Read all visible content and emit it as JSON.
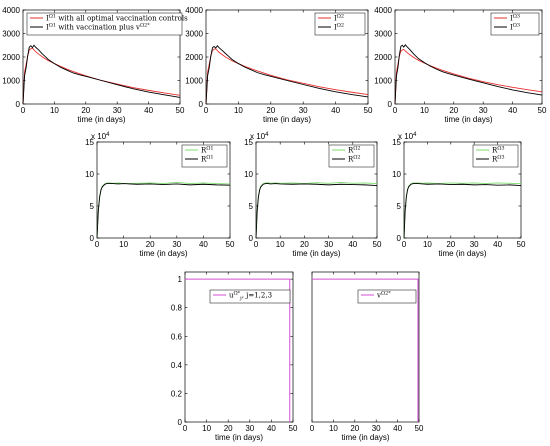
{
  "chart_data": [
    {
      "id": "p1",
      "type": "line",
      "xlabel": "time (in days)",
      "xlim": [
        0,
        50
      ],
      "ylim": [
        0,
        4000
      ],
      "xticks": [
        "0",
        "10",
        "20",
        "30",
        "40",
        "50"
      ],
      "yticks": [
        "0",
        "1000",
        "2000",
        "3000",
        "4000"
      ],
      "legend_position": "top-left",
      "y_exponent": "",
      "series": [
        {
          "name": "I^{Ω1} with all optimal vaccination controls",
          "color": "#e8302e",
          "x": [
            0,
            0.5,
            1,
            1.5,
            2,
            2.5,
            3,
            3.5,
            4,
            5,
            6,
            7,
            8,
            10,
            12,
            14,
            16,
            18,
            20,
            25,
            30,
            35,
            40,
            45,
            50
          ],
          "y": [
            0,
            1350,
            1700,
            2050,
            2300,
            2350,
            2380,
            2300,
            2230,
            2120,
            2020,
            1930,
            1850,
            1720,
            1600,
            1480,
            1380,
            1290,
            1200,
            1000,
            850,
            700,
            580,
            470,
            370
          ]
        },
        {
          "name": "I^{Ω1} with vaccination plus v^{Ω2*}",
          "color": "#000000",
          "x": [
            0,
            0.5,
            1,
            1.5,
            2,
            2.5,
            3,
            3.5,
            4,
            5,
            6,
            7,
            8,
            10,
            12,
            14,
            16,
            18,
            20,
            25,
            30,
            35,
            40,
            45,
            50
          ],
          "y": [
            0,
            1200,
            1550,
            2050,
            2420,
            2480,
            2400,
            2500,
            2420,
            2300,
            2150,
            2030,
            1900,
            1720,
            1560,
            1440,
            1320,
            1240,
            1180,
            1000,
            820,
            650,
            510,
            390,
            280
          ]
        }
      ]
    },
    {
      "id": "p2",
      "type": "line",
      "xlabel": "time (in days)",
      "xlim": [
        0,
        50
      ],
      "ylim": [
        0,
        4000
      ],
      "xticks": [
        "0",
        "10",
        "20",
        "30",
        "40",
        "50"
      ],
      "yticks": [
        "0",
        "1000",
        "2000",
        "3000",
        "4000"
      ],
      "legend_position": "top-right",
      "y_exponent": "",
      "series": [
        {
          "name": "I^{Ω2}",
          "color": "#e8302e",
          "x": [
            0,
            0.5,
            1,
            1.5,
            2,
            2.5,
            3,
            3.5,
            4,
            5,
            6,
            7,
            8,
            10,
            12,
            14,
            16,
            18,
            20,
            25,
            30,
            35,
            40,
            45,
            50
          ],
          "y": [
            0,
            1350,
            1700,
            2050,
            2280,
            2330,
            2350,
            2280,
            2200,
            2100,
            2000,
            1920,
            1840,
            1720,
            1600,
            1500,
            1400,
            1310,
            1220,
            1030,
            880,
            730,
            610,
            500,
            400
          ]
        },
        {
          "name": "I^{Ω2}",
          "color": "#000000",
          "x": [
            0,
            0.5,
            1,
            1.5,
            2,
            2.5,
            3,
            3.5,
            4,
            5,
            6,
            7,
            8,
            10,
            12,
            14,
            16,
            18,
            20,
            25,
            30,
            35,
            40,
            45,
            50
          ],
          "y": [
            0,
            1200,
            1550,
            2050,
            2400,
            2450,
            2380,
            2480,
            2400,
            2280,
            2150,
            2030,
            1900,
            1720,
            1570,
            1450,
            1330,
            1250,
            1180,
            1000,
            830,
            660,
            520,
            400,
            300
          ]
        }
      ]
    },
    {
      "id": "p3",
      "type": "line",
      "xlabel": "time (in days)",
      "xlim": [
        0,
        50
      ],
      "ylim": [
        0,
        4000
      ],
      "xticks": [
        "0",
        "10",
        "20",
        "30",
        "40",
        "50"
      ],
      "yticks": [
        "0",
        "1000",
        "2000",
        "3000",
        "4000"
      ],
      "legend_position": "top-right",
      "y_exponent": "",
      "series": [
        {
          "name": "I^{Ω3}",
          "color": "#e8302e",
          "x": [
            0,
            0.5,
            1,
            1.5,
            2,
            2.5,
            3,
            3.5,
            4,
            5,
            6,
            7,
            8,
            10,
            12,
            14,
            16,
            18,
            20,
            25,
            30,
            35,
            40,
            45,
            50
          ],
          "y": [
            0,
            1350,
            1700,
            2050,
            2250,
            2300,
            2320,
            2260,
            2200,
            2100,
            2010,
            1930,
            1860,
            1740,
            1630,
            1530,
            1440,
            1360,
            1280,
            1100,
            950,
            820,
            710,
            610,
            520
          ]
        },
        {
          "name": "I^{Ω3}",
          "color": "#000000",
          "x": [
            0,
            0.5,
            1,
            1.5,
            2,
            2.5,
            3,
            3.5,
            4,
            5,
            6,
            7,
            8,
            10,
            12,
            14,
            16,
            18,
            20,
            25,
            30,
            35,
            40,
            45,
            50
          ],
          "y": [
            0,
            1200,
            1550,
            2100,
            2450,
            2500,
            2420,
            2520,
            2450,
            2320,
            2180,
            2050,
            1930,
            1760,
            1610,
            1490,
            1380,
            1300,
            1230,
            1060,
            900,
            740,
            600,
            480,
            380
          ]
        }
      ]
    },
    {
      "id": "p4",
      "type": "line",
      "xlabel": "time (in days)",
      "xlim": [
        0,
        50
      ],
      "ylim": [
        0,
        15
      ],
      "xticks": [
        "0",
        "10",
        "20",
        "30",
        "40",
        "50"
      ],
      "yticks": [
        "0",
        "5",
        "10",
        "15"
      ],
      "legend_position": "top-right",
      "y_exponent": "x 10",
      "y_exponent_power": "4",
      "series": [
        {
          "name": "R^{Ω1}",
          "color": "#7ddc6e",
          "x": [
            0,
            0.5,
            1,
            1.5,
            2,
            3,
            4,
            5,
            6,
            8,
            10,
            15,
            20,
            25,
            30,
            35,
            40,
            45,
            50
          ],
          "y": [
            0,
            4.5,
            6.6,
            7.6,
            8.1,
            8.5,
            8.6,
            8.6,
            8.55,
            8.6,
            8.5,
            8.55,
            8.6,
            8.5,
            8.7,
            8.5,
            8.6,
            8.5,
            8.45
          ]
        },
        {
          "name": "R^{Ω1}",
          "color": "#000000",
          "x": [
            0,
            0.5,
            1,
            1.5,
            2,
            3,
            4,
            5,
            6,
            8,
            10,
            15,
            20,
            25,
            30,
            35,
            40,
            45,
            50
          ],
          "y": [
            0,
            4.3,
            6.4,
            7.5,
            8.0,
            8.4,
            8.55,
            8.5,
            8.5,
            8.45,
            8.5,
            8.4,
            8.45,
            8.35,
            8.45,
            8.3,
            8.4,
            8.3,
            8.25
          ]
        }
      ]
    },
    {
      "id": "p5",
      "type": "line",
      "xlabel": "time (in days)",
      "xlim": [
        0,
        50
      ],
      "ylim": [
        0,
        15
      ],
      "xticks": [
        "0",
        "10",
        "20",
        "30",
        "40",
        "50"
      ],
      "yticks": [
        "0",
        "5",
        "10",
        "15"
      ],
      "legend_position": "top-right",
      "y_exponent": "x 10",
      "y_exponent_power": "4",
      "series": [
        {
          "name": "R^{Ω2}",
          "color": "#7ddc6e",
          "x": [
            0,
            0.5,
            1,
            1.5,
            2,
            3,
            4,
            5,
            6,
            8,
            10,
            15,
            20,
            25,
            30,
            35,
            40,
            45,
            50
          ],
          "y": [
            0,
            4.5,
            6.6,
            7.6,
            8.1,
            8.5,
            8.6,
            8.65,
            8.55,
            8.6,
            8.55,
            8.6,
            8.5,
            8.65,
            8.55,
            8.7,
            8.55,
            8.6,
            8.5
          ]
        },
        {
          "name": "R^{Ω2}",
          "color": "#000000",
          "x": [
            0,
            0.5,
            1,
            1.5,
            2,
            3,
            4,
            5,
            6,
            8,
            10,
            15,
            20,
            25,
            30,
            35,
            40,
            45,
            50
          ],
          "y": [
            0,
            4.3,
            6.4,
            7.5,
            8.0,
            8.4,
            8.5,
            8.5,
            8.45,
            8.5,
            8.45,
            8.4,
            8.45,
            8.4,
            8.3,
            8.4,
            8.35,
            8.3,
            8.2
          ]
        }
      ]
    },
    {
      "id": "p6",
      "type": "line",
      "xlabel": "time (in days)",
      "xlim": [
        0,
        50
      ],
      "ylim": [
        0,
        15
      ],
      "xticks": [
        "0",
        "10",
        "20",
        "30",
        "40",
        "50"
      ],
      "yticks": [
        "0",
        "5",
        "10",
        "15"
      ],
      "legend_position": "top-right",
      "y_exponent": "x 10",
      "y_exponent_power": "4",
      "series": [
        {
          "name": "R^{Ω3}",
          "color": "#7ddc6e",
          "x": [
            0,
            0.5,
            1,
            1.5,
            2,
            3,
            4,
            5,
            6,
            8,
            10,
            15,
            20,
            25,
            30,
            35,
            40,
            45,
            50
          ],
          "y": [
            0,
            4.5,
            6.6,
            7.6,
            8.1,
            8.5,
            8.6,
            8.6,
            8.6,
            8.55,
            8.6,
            8.5,
            8.6,
            8.55,
            8.6,
            8.5,
            8.6,
            8.55,
            8.5
          ]
        },
        {
          "name": "R^{Ω3}",
          "color": "#000000",
          "x": [
            0,
            0.5,
            1,
            1.5,
            2,
            3,
            4,
            5,
            6,
            8,
            10,
            15,
            20,
            25,
            30,
            35,
            40,
            45,
            50
          ],
          "y": [
            0,
            4.3,
            6.4,
            7.5,
            8.0,
            8.4,
            8.5,
            8.5,
            8.5,
            8.45,
            8.4,
            8.45,
            8.35,
            8.4,
            8.3,
            8.35,
            8.25,
            8.3,
            8.2
          ]
        }
      ]
    },
    {
      "id": "p7",
      "type": "line",
      "xlabel": "time (in days)",
      "xlim": [
        0,
        50
      ],
      "ylim": [
        0,
        1.05
      ],
      "xticks": [
        "0",
        "10",
        "20",
        "30",
        "40",
        "50"
      ],
      "yticks": [
        "0",
        "0.2",
        "0.4",
        "0.6",
        "0.8",
        "1"
      ],
      "legend_position": "top-right",
      "y_exponent": "",
      "series": [
        {
          "name": "u^{Ω*}_{j}, j=1,2,3",
          "color": "#d84fd8",
          "x": [
            0,
            48.5,
            48.5
          ],
          "y": [
            1,
            1,
            0
          ]
        }
      ]
    },
    {
      "id": "p8",
      "type": "line",
      "xlabel": "time (in days)",
      "xlim": [
        0,
        50
      ],
      "ylim": [
        0,
        1.05
      ],
      "xticks": [
        "0",
        "10",
        "20",
        "30",
        "40",
        "50"
      ],
      "yticks": [],
      "legend_position": "top-right",
      "y_exponent": "",
      "series": [
        {
          "name": "v^{Ω2*}",
          "color": "#d84fd8",
          "x": [
            0,
            49.5,
            49.5
          ],
          "y": [
            1,
            1,
            0
          ]
        }
      ]
    }
  ]
}
